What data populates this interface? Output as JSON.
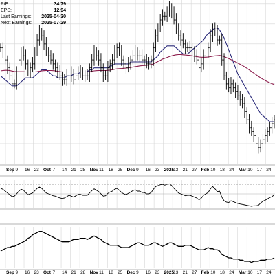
{
  "stats": [
    {
      "label": "P/E:",
      "value": "34.79"
    },
    {
      "label": "EPS:",
      "value": "12.94"
    },
    {
      "label": "Last Earnings:",
      "value": "2025-04-30"
    },
    {
      "label": "Next Earnings:",
      "value": "2025-07-29"
    }
  ],
  "chart_data": {
    "type": "ohlc",
    "x_tick_labels": [
      {
        "label": "Sep",
        "bold": true
      },
      {
        "label": "9"
      },
      {
        "label": "16"
      },
      {
        "label": "23"
      },
      {
        "label": "Oct",
        "bold": true
      },
      {
        "label": "7"
      },
      {
        "label": "14"
      },
      {
        "label": "21"
      },
      {
        "label": "28"
      },
      {
        "label": "Nov",
        "bold": true
      },
      {
        "label": "11"
      },
      {
        "label": "18"
      },
      {
        "label": "25"
      },
      {
        "label": "Dec",
        "bold": true
      },
      {
        "label": "9"
      },
      {
        "label": "16"
      },
      {
        "label": "23"
      },
      {
        "label": "2025",
        "bold": true
      },
      {
        "label": "13"
      },
      {
        "label": "21"
      },
      {
        "label": "27"
      },
      {
        "label": "Feb",
        "bold": true
      },
      {
        "label": "10"
      },
      {
        "label": "18"
      },
      {
        "label": "24"
      },
      {
        "label": "Mar",
        "bold": true
      },
      {
        "label": "10"
      },
      {
        "label": "17"
      },
      {
        "label": "24"
      }
    ],
    "price_close": [
      118,
      116,
      112,
      108,
      104,
      100,
      100,
      106,
      112,
      116,
      114,
      110,
      106,
      108,
      110,
      116,
      122,
      126,
      124,
      120,
      116,
      114,
      112,
      110,
      108,
      106,
      104,
      102,
      102,
      104,
      106,
      104,
      102,
      104,
      106,
      106,
      104,
      104,
      104,
      108,
      112,
      116,
      114,
      112,
      108,
      104,
      104,
      108,
      110,
      112,
      116,
      118,
      116,
      112,
      110,
      108,
      110,
      112,
      114,
      116,
      114,
      114,
      112,
      112,
      110,
      110,
      112,
      118,
      124,
      128,
      132,
      134,
      134,
      136,
      138,
      136,
      132,
      128,
      124,
      122,
      120,
      118,
      118,
      118,
      116,
      114,
      112,
      108,
      110,
      114,
      116,
      118,
      124,
      128,
      126,
      122,
      122,
      112,
      104,
      100,
      98,
      100,
      98,
      96,
      94,
      92,
      90,
      86,
      82,
      78,
      76,
      74,
      70,
      68,
      70,
      72,
      74,
      76,
      78,
      80,
      82
    ],
    "ma_short": [
      106.5,
      106.7,
      106.8,
      106.8,
      106.7,
      106.4,
      106.2,
      106.1,
      106.1,
      106.1,
      106.1,
      106.0,
      106.0,
      106.0,
      106.0,
      106.0,
      106.1,
      106.3,
      106.5,
      106.6,
      106.7,
      106.7,
      106.7,
      106.6,
      106.5,
      106.3,
      106.1,
      106.0,
      106.0,
      106.0,
      106.0,
      106.0,
      106.0,
      106.0,
      106.0,
      106.0,
      106.0,
      106.0,
      106.0,
      106.1,
      106.3,
      106.5,
      106.6,
      106.7,
      106.7,
      106.7,
      106.7,
      106.8,
      106.9,
      107.1,
      107.3,
      107.5,
      107.6,
      107.7,
      107.8,
      107.9,
      108.0,
      108.2,
      108.4,
      108.6,
      108.8,
      109.0,
      109.1,
      109.2,
      109.3,
      109.4,
      109.6,
      110.0,
      110.6,
      111.2,
      111.8,
      112.4,
      112.8,
      113.2,
      113.6,
      114.0,
      114.3,
      114.5,
      114.6,
      114.6,
      114.5,
      114.4,
      114.3,
      114.2,
      114.0,
      113.8,
      113.6,
      113.4,
      113.3,
      113.3,
      113.3,
      113.4,
      113.6,
      113.8,
      114.0,
      114.1,
      114.2,
      114.0,
      113.6,
      113.1,
      112.6,
      112.1,
      111.6,
      111.0,
      110.4,
      109.8,
      109.2,
      108.5,
      107.8,
      107.0,
      106.2,
      105.4,
      104.6,
      103.8,
      103.0,
      102.3,
      101.7,
      101.1,
      100.6,
      100.1,
      99.7
    ],
    "ma_long": [
      104,
      103,
      102,
      101,
      100,
      99,
      99,
      99,
      100,
      101,
      102,
      103,
      103,
      103,
      103,
      104,
      105,
      106,
      107,
      107,
      107,
      106,
      105,
      104,
      104,
      103,
      103,
      103,
      103,
      104,
      104,
      104,
      105,
      105,
      105,
      106,
      106,
      106,
      106,
      107,
      107,
      108,
      108,
      108,
      108,
      108,
      108,
      108,
      109,
      109,
      110,
      110,
      110,
      110,
      110,
      110,
      110,
      111,
      111,
      111,
      111,
      111,
      111,
      111,
      111,
      111,
      111,
      112,
      113,
      114,
      116,
      117,
      118,
      119,
      119,
      119,
      119,
      118,
      117,
      116,
      115,
      115,
      115,
      116,
      117,
      118,
      119,
      120,
      121,
      122,
      124,
      125,
      126,
      127,
      128,
      128,
      127,
      125,
      123,
      120,
      117,
      114,
      111,
      108,
      105,
      103,
      101,
      99,
      97,
      95,
      93,
      91,
      89,
      87,
      85,
      84,
      83,
      82,
      81,
      81,
      81
    ],
    "rsi": [
      62,
      60,
      56,
      52,
      48,
      44,
      45,
      50,
      56,
      60,
      58,
      53,
      48,
      50,
      52,
      57,
      62,
      65,
      62,
      57,
      52,
      50,
      48,
      46,
      45,
      43,
      41,
      40,
      41,
      44,
      47,
      45,
      43,
      46,
      49,
      49,
      47,
      47,
      47,
      52,
      57,
      61,
      58,
      55,
      50,
      45,
      46,
      51,
      54,
      56,
      60,
      62,
      58,
      53,
      50,
      48,
      51,
      54,
      57,
      59,
      56,
      56,
      53,
      53,
      50,
      50,
      53,
      60,
      66,
      68,
      70,
      71,
      69,
      71,
      72,
      68,
      62,
      57,
      52,
      50,
      48,
      46,
      47,
      47,
      45,
      43,
      41,
      37,
      41,
      47,
      50,
      53,
      61,
      66,
      61,
      55,
      56,
      43,
      35,
      32,
      31,
      35,
      33,
      31,
      29,
      28,
      27,
      26,
      25,
      24,
      23,
      24,
      24,
      25,
      30,
      34,
      36,
      39,
      42,
      44,
      48
    ],
    "rs_line": [
      0.95,
      0.96,
      0.97,
      0.98,
      0.98,
      0.99,
      0.99,
      1.0,
      1.01,
      1.02,
      1.03,
      1.04,
      1.06,
      1.07,
      1.09,
      1.1,
      1.11,
      1.12,
      1.12,
      1.11,
      1.1,
      1.09,
      1.08,
      1.07,
      1.06,
      1.05,
      1.04,
      1.03,
      1.03,
      1.03,
      1.03,
      1.04,
      1.05,
      1.05,
      1.05,
      1.06,
      1.06,
      1.06,
      1.05,
      1.06,
      1.07,
      1.08,
      1.07,
      1.06,
      1.05,
      1.03,
      1.02,
      1.01,
      1.0,
      1.0,
      1.0,
      1.0,
      0.99,
      0.98,
      0.98,
      0.98,
      0.98,
      0.99,
      1.0,
      1.01,
      1.02,
      1.02,
      1.01,
      1.0,
      1.0,
      1.0,
      1.01,
      1.02,
      1.02,
      1.01,
      1.0,
      0.99,
      1.0,
      1.01,
      1.02,
      1.02,
      1.01,
      1.0,
      0.99,
      0.99,
      0.99,
      1.0,
      1.0,
      1.0,
      0.99,
      0.98,
      0.97,
      0.96,
      0.96,
      0.96,
      0.97,
      0.98,
      0.97,
      0.97,
      0.96,
      0.96,
      0.95,
      0.92,
      0.91,
      0.9,
      0.89,
      0.89,
      0.88,
      0.88,
      0.88,
      0.87,
      0.87,
      0.86,
      0.86,
      0.86,
      0.85,
      0.86,
      0.86,
      0.86,
      0.87,
      0.87,
      0.87,
      0.88,
      0.88,
      0.88,
      0.89
    ],
    "grid": true,
    "colors": {
      "price": "#000000",
      "ma_short": "#8b1a4a",
      "ma_long": "#2b2b7a",
      "grid": "#d6d6d6"
    }
  }
}
